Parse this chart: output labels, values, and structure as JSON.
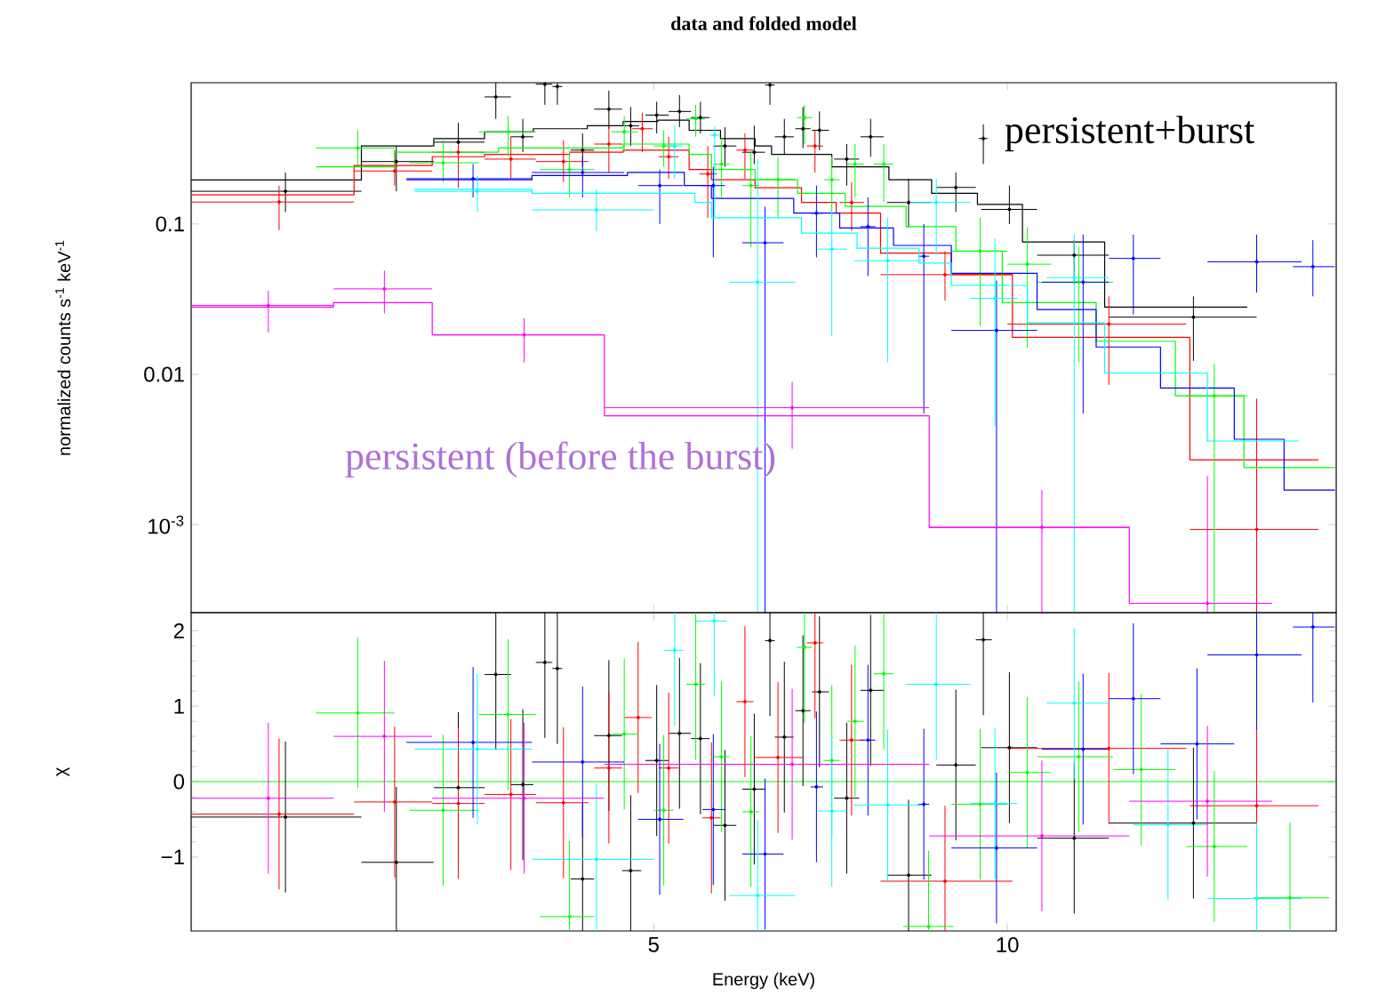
{
  "chart_data": [
    {
      "type": "scatter",
      "title": "data and folded model",
      "ylabel": "normalized counts s$^{-1}$ keV$^{-1}$",
      "log": "xy",
      "tick_labels": "y",
      "xlim": [
        2.02,
        19.05
      ],
      "xticks": [
        5,
        10
      ],
      "ylim": [
        0.00026,
        0.87
      ],
      "yticks": [
        0.1,
        0.01,
        {
          "value": 0.001,
          "label": "10$^{-3}$"
        }
      ],
      "annotations": [
        "persistent+burst",
        "persistent (before the burst)"
      ],
      "series": [
        {
          "color": "#000000",
          "x": [
            2.43,
            3.02,
            3.41,
            3.67,
            3.87,
            4.04,
            4.14,
            4.35,
            4.58,
            4.78,
            5.03,
            5.26,
            5.48,
            5.75,
            6.09,
            6.28,
            6.46,
            6.7,
            6.92,
            7.3,
            7.65,
            8.24,
            9.04,
            9.54,
            10.04,
            11.4,
            14.4
          ],
          "values": [
            0.165,
            0.26,
            0.35,
            0.7,
            0.38,
            0.85,
            0.82,
            0.31,
            0.58,
            0.45,
            0.53,
            0.56,
            0.51,
            0.33,
            0.3,
            0.84,
            0.38,
            0.43,
            0.42,
            0.27,
            0.38,
            0.139,
            0.175,
            0.37,
            0.125,
            0.062,
            0.024
          ],
          "errors": [
            [
              0.12,
              0.22
            ],
            [
              0.165,
              0.33
            ],
            [
              0.29,
              0.47
            ],
            [
              0.5,
              0.87
            ],
            [
              0.3,
              0.5
            ],
            [
              0.62,
              0.87
            ],
            [
              0.62,
              0.87
            ],
            [
              0.24,
              0.4
            ],
            [
              0.43,
              0.77
            ],
            [
              0.33,
              0.6
            ],
            [
              0.4,
              0.65
            ],
            [
              0.44,
              0.72
            ],
            [
              0.4,
              0.65
            ],
            [
              0.24,
              0.44
            ],
            [
              0.25,
              0.45
            ],
            [
              0.62,
              0.87
            ],
            [
              0.29,
              0.5
            ],
            [
              0.32,
              0.6
            ],
            [
              0.31,
              0.56
            ],
            [
              0.18,
              0.34
            ],
            [
              0.28,
              0.5
            ],
            [
              0.095,
              0.2
            ],
            [
              0.12,
              0.22
            ],
            [
              0.25,
              0.46
            ],
            [
              0.1,
              0.18
            ],
            [
              0.04,
              0.078
            ],
            [
              0.0123,
              0.033
            ]
          ],
          "xerrors": [
            [
              2.02,
              2.82
            ],
            [
              2.82,
              3.25
            ],
            [
              3.25,
              3.59
            ],
            [
              3.59,
              3.78
            ],
            [
              3.78,
              3.95
            ],
            [
              3.97,
              4.1
            ],
            [
              4.1,
              4.18
            ],
            [
              4.25,
              4.45
            ],
            [
              4.45,
              4.7
            ],
            [
              4.72,
              4.86
            ],
            [
              4.92,
              5.15
            ],
            [
              5.15,
              5.38
            ],
            [
              5.38,
              5.58
            ],
            [
              5.62,
              5.88
            ],
            [
              5.95,
              6.22
            ],
            [
              6.22,
              6.34
            ],
            [
              6.34,
              6.58
            ],
            [
              6.6,
              6.8
            ],
            [
              6.82,
              7.05
            ],
            [
              7.12,
              7.48
            ],
            [
              7.5,
              7.85
            ],
            [
              7.9,
              8.62
            ],
            [
              8.7,
              9.4
            ],
            [
              9.45,
              9.62
            ],
            [
              9.5,
              10.6
            ],
            [
              10.6,
              12.2
            ],
            [
              12.2,
              16.3
            ]
          ]
        },
        {
          "type": "step",
          "color": "#000000",
          "x": [
            2.02,
            2.82,
            3.25,
            3.59,
            3.95,
            4.39,
            4.71,
            5.04,
            5.36,
            5.7,
            6.1,
            6.3,
            7.09,
            7.93,
            8.62,
            9.43,
            10.3,
            12.1,
            16.0
          ],
          "values": [
            0.196,
            0.33,
            0.37,
            0.41,
            0.43,
            0.45,
            0.48,
            0.49,
            0.42,
            0.37,
            0.33,
            0.29,
            0.24,
            0.197,
            0.16,
            0.135,
            0.076,
            0.028,
            0.028
          ]
        },
        {
          "color": "#ff0000",
          "x": [
            2.4,
            3.01,
            3.41,
            3.78,
            4.19,
            4.58,
            4.89,
            5.15,
            5.56,
            5.98,
            6.86,
            7.37,
            8.85,
            12.2,
            16.3
          ],
          "values": [
            0.14,
            0.225,
            0.3,
            0.27,
            0.26,
            0.34,
            0.43,
            0.28,
            0.215,
            0.31,
            0.33,
            0.139,
            0.046,
            0.0216,
            0.00093
          ],
          "errors": [
            [
              0.091,
              0.18
            ],
            [
              0.18,
              0.31
            ],
            [
              0.174,
              0.36
            ],
            [
              0.2,
              0.38
            ],
            [
              0.19,
              0.36
            ],
            [
              0.22,
              0.45
            ],
            [
              0.3,
              0.55
            ],
            [
              0.2,
              0.38
            ],
            [
              0.11,
              0.33
            ],
            [
              0.2,
              0.4
            ],
            [
              0.22,
              0.42
            ],
            [
              0.09,
              0.19
            ],
            [
              0.031,
              0.066
            ],
            [
              0.0085,
              0.033
            ],
            [
              0.00026,
              0.0069
            ]
          ],
          "xerrors": [
            [
              2.02,
              2.78
            ],
            [
              2.78,
              3.24
            ],
            [
              3.24,
              3.59
            ],
            [
              3.59,
              3.97
            ],
            [
              3.97,
              4.4
            ],
            [
              4.45,
              4.7
            ],
            [
              4.79,
              4.99
            ],
            [
              5.05,
              5.25
            ],
            [
              5.47,
              5.66
            ],
            [
              5.88,
              6.08
            ],
            [
              6.75,
              6.97
            ],
            [
              7.2,
              7.55
            ],
            [
              7.8,
              10.1
            ],
            [
              10.0,
              14.2
            ],
            [
              14.3,
              18.4
            ]
          ]
        },
        {
          "type": "step",
          "color": "#ff0000",
          "x": [
            2.02,
            2.78,
            3.24,
            3.59,
            4.24,
            4.71,
            5.36,
            5.6,
            6.1,
            6.68,
            7.15,
            7.8,
            8.96,
            10.1,
            14.3,
            18.4
          ],
          "values": [
            0.156,
            0.245,
            0.28,
            0.29,
            0.3,
            0.31,
            0.23,
            0.197,
            0.174,
            0.139,
            0.118,
            0.064,
            0.046,
            0.0176,
            0.0027,
            0.0027
          ]
        },
        {
          "color": "#00ff00",
          "x": [
            2.8,
            3.31,
            3.76,
            4.24,
            4.72,
            5.1,
            5.43,
            5.71,
            6.05,
            6.38,
            6.72,
            7.09,
            7.42,
            7.85,
            9.48,
            10.4,
            11.5,
            15.0
          ],
          "values": [
            0.32,
            0.255,
            0.41,
            0.23,
            0.41,
            0.33,
            0.5,
            0.25,
            0.18,
            0.197,
            0.51,
            0.197,
            0.25,
            0.25,
            0.066,
            0.054,
            0.041,
            0.0072
          ],
          "errors": [
            [
              0.24,
              0.42
            ],
            [
              0.19,
              0.36
            ],
            [
              0.28,
              0.52
            ],
            [
              0.15,
              0.3
            ],
            [
              0.3,
              0.52
            ],
            [
              0.24,
              0.42
            ],
            [
              0.38,
              0.62
            ],
            [
              0.15,
              0.37
            ],
            [
              0.07,
              0.3
            ],
            [
              0.11,
              0.28
            ],
            [
              0.34,
              0.62
            ],
            [
              0.11,
              0.28
            ],
            [
              0.15,
              0.34
            ],
            [
              0.14,
              0.34
            ],
            [
              0.021,
              0.11
            ],
            [
              0.015,
              0.095
            ],
            [
              0.012,
              0.07
            ],
            [
              0.00026,
              0.0117
            ]
          ],
          "xerrors": [
            [
              2.58,
              3.01
            ],
            [
              3.1,
              3.55
            ],
            [
              3.55,
              3.97
            ],
            [
              4.0,
              4.45
            ],
            [
              4.6,
              4.85
            ],
            [
              5.0,
              5.2
            ],
            [
              5.33,
              5.53
            ],
            [
              5.62,
              5.8
            ],
            [
              5.95,
              6.15
            ],
            [
              6.15,
              6.6
            ],
            [
              6.62,
              6.82
            ],
            [
              6.98,
              7.2
            ],
            [
              7.3,
              7.55
            ],
            [
              7.7,
              8.0
            ],
            [
              8.96,
              10.0
            ],
            [
              10.0,
              10.9
            ],
            [
              10.6,
              12.3
            ],
            [
              14.2,
              16.0
            ]
          ]
        },
        {
          "type": "step",
          "color": "#00ff00",
          "x": [
            2.58,
            3.01,
            3.69,
            4.71,
            5.36,
            5.6,
            6.1,
            6.63,
            7.28,
            8.2,
            9.04,
            9.9,
            11.9,
            13.9,
            15.9,
            19.0
          ],
          "values": [
            0.24,
            0.3,
            0.32,
            0.34,
            0.29,
            0.23,
            0.197,
            0.16,
            0.131,
            0.096,
            0.066,
            0.03,
            0.0166,
            0.0072,
            0.0024,
            0.0024
          ]
        },
        {
          "color": "#0000ff",
          "x": [
            3.51,
            4.35,
            5.06,
            5.62,
            6.22,
            6.88,
            7.61,
            8.49,
            9.79,
            11.6,
            12.8,
            16.3,
            18.2
          ],
          "values": [
            0.2,
            0.22,
            0.18,
            0.18,
            0.075,
            0.118,
            0.096,
            0.061,
            0.0196,
            0.041,
            0.059,
            0.056,
            0.052
          ],
          "errors": [
            [
              0.15,
              0.25
            ],
            [
              0.15,
              0.28
            ],
            [
              0.1,
              0.23
            ],
            [
              0.06,
              0.24
            ],
            [
              0.00026,
              0.13
            ],
            [
              0.06,
              0.18
            ],
            [
              0.045,
              0.15
            ],
            [
              0.0055,
              0.1
            ],
            [
              0.00026,
              0.042
            ],
            [
              0.0055,
              0.085
            ],
            [
              0.025,
              0.085
            ],
            [
              0.035,
              0.085
            ],
            [
              0.033,
              0.078
            ]
          ],
          "xerrors": [
            [
              3.08,
              3.94
            ],
            [
              3.94,
              4.72
            ],
            [
              4.85,
              5.3
            ],
            [
              5.5,
              5.75
            ],
            [
              5.95,
              6.45
            ],
            [
              6.8,
              6.97
            ],
            [
              7.5,
              7.72
            ],
            [
              8.4,
              8.58
            ],
            [
              8.96,
              10.6
            ],
            [
              10.7,
              12.2
            ],
            [
              12.2,
              13.5
            ],
            [
              14.8,
              17.8
            ],
            [
              17.5,
              19.0
            ]
          ]
        },
        {
          "type": "step",
          "color": "#0000ff",
          "x": [
            3.08,
            3.94,
            4.75,
            5.31,
            5.6,
            6.58,
            7.2,
            8.0,
            8.96,
            10.6,
            11.9,
            13.5,
            15.6,
            17.2,
            19.0
          ],
          "values": [
            0.197,
            0.21,
            0.22,
            0.18,
            0.148,
            0.118,
            0.094,
            0.072,
            0.047,
            0.027,
            0.0152,
            0.0081,
            0.0037,
            0.0017,
            0.0017
          ]
        },
        {
          "color": "#00ffff",
          "x": [
            3.54,
            4.47,
            5.21,
            5.635,
            6.13,
            7.09,
            7.91,
            8.7,
            9.76,
            11.4
          ],
          "values": [
            0.165,
            0.124,
            0.33,
            0.39,
            0.041,
            0.068,
            0.057,
            0.139,
            0.032,
            0.044
          ],
          "errors": [
            [
              0.12,
              0.21
            ],
            [
              0.09,
              0.17
            ],
            [
              0.2,
              0.45
            ],
            [
              0.11,
              0.45
            ],
            [
              0.00026,
              0.27
            ],
            [
              0.018,
              0.12
            ],
            [
              0.012,
              0.11
            ],
            [
              0.062,
              0.2
            ],
            [
              0.0045,
              0.08
            ],
            [
              0.00026,
              0.085
            ]
          ],
          "xerrors": [
            [
              3.13,
              3.94
            ],
            [
              3.94,
              5.0
            ],
            [
              5.1,
              5.3
            ],
            [
              5.58,
              5.69
            ],
            [
              5.8,
              6.6
            ],
            [
              6.9,
              7.3
            ],
            [
              7.4,
              8.45
            ],
            [
              8.2,
              9.3
            ],
            [
              9.3,
              10.2
            ],
            [
              10.8,
              12.2
            ]
          ]
        },
        {
          "type": "step",
          "color": "#00ffff",
          "x": [
            3.13,
            3.94,
            5.42,
            5.6,
            6.68,
            7.45,
            8.41,
            8.96,
            10.4,
            12.1,
            14.8,
            17.7
          ],
          "values": [
            0.17,
            0.16,
            0.139,
            0.11,
            0.087,
            0.069,
            0.055,
            0.039,
            0.022,
            0.0102,
            0.0036,
            0.0036
          ]
        },
        {
          "color": "#ff00ff",
          "x": [
            2.35,
            2.95,
            3.88,
            6.56,
            10.7,
            14.8
          ],
          "values": [
            0.0287,
            0.037,
            0.0183,
            0.006,
            0.00096,
            0.0003
          ],
          "errors": [
            [
              0.019,
              0.036
            ],
            [
              0.0254,
              0.049
            ],
            [
              0.012,
              0.0237
            ],
            [
              0.0032,
              0.0089
            ],
            [
              0.00026,
              0.0017
            ],
            [
              0.00026,
              0.0021
            ]
          ],
          "xerrors": [
            [
              2.02,
              2.67
            ],
            [
              2.67,
              3.24
            ],
            [
              3.24,
              4.54
            ],
            [
              4.54,
              8.58
            ],
            [
              8.58,
              12.7
            ],
            [
              12.7,
              16.8
            ]
          ]
        },
        {
          "type": "step",
          "color": "#ff00ff",
          "x": [
            2.02,
            2.67,
            3.24,
            4.54,
            8.58,
            12.7,
            16.8
          ],
          "values": [
            0.028,
            0.03,
            0.0183,
            0.0053,
            0.00096,
            0.0003,
            0.0003
          ]
        }
      ]
    },
    {
      "type": "scatter",
      "xlabel": "Energy (keV)",
      "ylabel": "χ",
      "log": "x",
      "xlim": [
        2.02,
        19.05
      ],
      "xticks": [
        5,
        10
      ],
      "ylim": [
        -1.98,
        2.24
      ],
      "yticks": [
        {
          "value": -1,
          "label": "−1"
        },
        0,
        1,
        2
      ],
      "ref_lines": [
        {
          "axis": "y",
          "value": 0,
          "color": "#00ff00"
        }
      ],
      "series": [
        {
          "color": "#000000",
          "x": [
            2.43,
            3.02,
            3.41,
            3.67,
            3.87,
            4.04,
            4.14,
            4.35,
            4.58,
            4.78,
            5.03,
            5.26,
            5.48,
            5.75,
            6.09,
            6.28,
            6.46,
            6.7,
            6.92,
            7.3,
            7.65,
            8.24,
            9.04,
            9.54,
            10.04,
            11.4,
            14.4
          ],
          "values": [
            -0.47,
            -1.07,
            -0.08,
            1.42,
            -0.04,
            1.58,
            1.5,
            -1.29,
            0.61,
            -1.18,
            0.28,
            0.64,
            0.57,
            -0.58,
            -0.1,
            1.87,
            0.59,
            0.94,
            1.19,
            -0.22,
            1.21,
            -1.24,
            0.22,
            1.88,
            0.45,
            -0.75,
            -0.55
          ],
          "errors": [
            1,
            [
              -1.98,
              -0.07
            ],
            1,
            [
              0.42,
              2.24
            ],
            1,
            [
              0.58,
              2.24
            ],
            [
              0.5,
              2.24
            ],
            [
              -1.98,
              -0.29
            ],
            1,
            [
              -1.98,
              -0.18
            ],
            1,
            1,
            1,
            1,
            1,
            [
              0.87,
              2.24
            ],
            1,
            1,
            1,
            1,
            1,
            [
              -1.98,
              -0.24
            ],
            1,
            [
              0.88,
              2.24
            ],
            1,
            1,
            1
          ],
          "xerrors": [
            [
              2.02,
              2.82
            ],
            [
              2.82,
              3.25
            ],
            [
              3.25,
              3.59
            ],
            [
              3.59,
              3.78
            ],
            [
              3.78,
              3.95
            ],
            [
              3.97,
              4.1
            ],
            [
              4.1,
              4.18
            ],
            [
              4.25,
              4.45
            ],
            [
              4.45,
              4.7
            ],
            [
              4.7,
              4.88
            ],
            [
              4.92,
              5.15
            ],
            [
              5.15,
              5.38
            ],
            [
              5.38,
              5.58
            ],
            [
              5.62,
              5.88
            ],
            [
              5.95,
              6.22
            ],
            [
              6.22,
              6.34
            ],
            [
              6.34,
              6.58
            ],
            [
              6.6,
              6.8
            ],
            [
              6.82,
              7.05
            ],
            [
              7.12,
              7.48
            ],
            [
              7.5,
              7.85
            ],
            [
              7.9,
              8.62
            ],
            [
              8.7,
              9.4
            ],
            [
              9.4,
              9.7
            ],
            [
              9.5,
              10.6
            ],
            [
              10.6,
              12.2
            ],
            [
              12.2,
              16.3
            ]
          ]
        },
        {
          "color": "#ff0000",
          "x": [
            2.4,
            3.01,
            3.41,
            3.78,
            4.19,
            4.58,
            4.85,
            5.15,
            5.6,
            5.98,
            6.38,
            6.86,
            7.37,
            8.85,
            12.2,
            16.3
          ],
          "values": [
            -0.43,
            -0.27,
            -0.29,
            -0.17,
            -0.28,
            0.18,
            0.85,
            0.18,
            -0.48,
            1.06,
            0.32,
            1.84,
            0.55,
            -1.32,
            0.44,
            -0.32
          ],
          "errors": [
            1,
            1,
            1,
            1,
            1,
            1,
            1,
            1,
            1,
            1,
            1,
            [
              0.84,
              2.24
            ],
            1,
            [
              -1.98,
              -0.32
            ],
            1,
            1
          ],
          "xerrors": [
            [
              2.02,
              2.78
            ],
            [
              2.78,
              3.24
            ],
            [
              3.24,
              3.59
            ],
            [
              3.59,
              3.97
            ],
            [
              3.97,
              4.4
            ],
            [
              4.45,
              4.7
            ],
            [
              4.72,
              4.98
            ],
            [
              5.05,
              5.25
            ],
            [
              5.5,
              5.7
            ],
            [
              5.88,
              6.08
            ],
            [
              6.1,
              6.7
            ],
            [
              6.75,
              6.97
            ],
            [
              7.2,
              7.55
            ],
            [
              7.8,
              10.1
            ],
            [
              10.0,
              14.2
            ],
            [
              14.3,
              18.4
            ]
          ]
        },
        {
          "color": "#00ff00",
          "x": [
            2.8,
            3.31,
            3.76,
            4.24,
            4.72,
            5.1,
            5.43,
            5.71,
            6.05,
            6.72,
            7.09,
            7.42,
            7.85,
            8.57,
            9.48,
            10.4,
            11.5,
            13.0,
            15.0,
            17.4
          ],
          "values": [
            0.91,
            -0.38,
            0.89,
            -1.79,
            0.63,
            -0.38,
            1.29,
            0.33,
            -0.4,
            1.78,
            0.28,
            0.8,
            1.43,
            -1.92,
            -0.3,
            0.12,
            0.33,
            0.16,
            -0.86,
            -1.54
          ],
          "errors": [
            1,
            1,
            1,
            [
              -1.98,
              -0.79
            ],
            1,
            1,
            [
              0.29,
              2.24
            ],
            1,
            1,
            [
              0.78,
              2.24
            ],
            1,
            1,
            [
              0.43,
              2.24
            ],
            [
              -1.98,
              -0.92
            ],
            1,
            1,
            1,
            1,
            1,
            [
              -1.98,
              -0.54
            ]
          ],
          "xerrors": [
            [
              2.58,
              3.01
            ],
            [
              3.1,
              3.55
            ],
            [
              3.55,
              3.97
            ],
            [
              4.0,
              4.45
            ],
            [
              4.6,
              4.85
            ],
            [
              5.0,
              5.2
            ],
            [
              5.33,
              5.53
            ],
            [
              5.62,
              5.8
            ],
            [
              5.95,
              6.15
            ],
            [
              6.62,
              6.82
            ],
            [
              6.98,
              7.2
            ],
            [
              7.3,
              7.55
            ],
            [
              7.7,
              8.0
            ],
            [
              8.15,
              9.0
            ],
            [
              8.96,
              10.0
            ],
            [
              10.0,
              10.9
            ],
            [
              10.6,
              12.3
            ],
            [
              12.3,
              13.9
            ],
            [
              14.2,
              16.0
            ],
            [
              16.2,
              18.8
            ]
          ]
        },
        {
          "color": "#0000ff",
          "x": [
            3.51,
            4.35,
            5.06,
            5.62,
            6.22,
            6.88,
            7.61,
            8.49,
            9.79,
            11.6,
            12.8,
            14.5,
            16.3,
            18.2
          ],
          "values": [
            0.52,
            0.26,
            -0.5,
            -0.37,
            -0.96,
            -0.07,
            0.55,
            -0.3,
            -0.88,
            0.43,
            1.1,
            0.5,
            1.68,
            2.05
          ],
          "errors": [
            1,
            1,
            1,
            1,
            1,
            1,
            1,
            1,
            1,
            1,
            1,
            1,
            [
              0.68,
              2.24
            ],
            [
              1.05,
              2.24
            ]
          ],
          "xerrors": [
            [
              3.08,
              3.94
            ],
            [
              3.94,
              4.72
            ],
            [
              4.85,
              5.3
            ],
            [
              5.5,
              5.75
            ],
            [
              5.95,
              6.45
            ],
            [
              6.8,
              6.97
            ],
            [
              7.5,
              7.72
            ],
            [
              8.4,
              8.58
            ],
            [
              8.96,
              10.6
            ],
            [
              10.7,
              12.2
            ],
            [
              12.2,
              13.5
            ],
            [
              13.5,
              15.6
            ],
            [
              14.8,
              17.8
            ],
            [
              17.5,
              19.0
            ]
          ]
        },
        {
          "color": "#00ffff",
          "x": [
            3.54,
            4.47,
            5.21,
            5.63,
            6.13,
            7.09,
            7.91,
            8.7,
            9.76,
            11.4,
            13.7,
            16.3
          ],
          "values": [
            0.43,
            -1.03,
            1.74,
            2.13,
            -1.51,
            -0.39,
            -0.31,
            1.29,
            -0.29,
            1.04,
            -0.57,
            -1.55
          ],
          "errors": [
            1,
            [
              -1.98,
              -0.03
            ],
            [
              0.74,
              2.24
            ],
            [
              1.13,
              2.24
            ],
            [
              -1.98,
              -0.51
            ],
            1,
            1,
            [
              0.29,
              2.24
            ],
            1,
            1,
            1,
            [
              -1.98,
              -0.55
            ]
          ],
          "xerrors": [
            [
              3.13,
              3.94
            ],
            [
              3.94,
              5.0
            ],
            [
              5.1,
              5.3
            ],
            [
              5.43,
              5.77
            ],
            [
              5.8,
              6.6
            ],
            [
              6.9,
              7.3
            ],
            [
              7.4,
              8.45
            ],
            [
              8.2,
              9.3
            ],
            [
              9.3,
              10.2
            ],
            [
              10.8,
              12.2
            ],
            [
              12.8,
              14.8
            ],
            [
              14.8,
              17.8
            ]
          ]
        },
        {
          "color": "#ff00ff",
          "x": [
            2.35,
            2.95,
            3.88,
            6.56,
            10.7,
            14.8
          ],
          "values": [
            -0.22,
            0.6,
            -0.22,
            0.23,
            -0.72,
            -0.26
          ],
          "errors": [
            1,
            1,
            1,
            1,
            1,
            1
          ],
          "xerrors": [
            [
              2.02,
              2.67
            ],
            [
              2.67,
              3.24
            ],
            [
              3.24,
              4.54
            ],
            [
              4.54,
              8.58
            ],
            [
              8.58,
              12.7
            ],
            [
              12.7,
              16.8
            ]
          ]
        }
      ]
    }
  ]
}
